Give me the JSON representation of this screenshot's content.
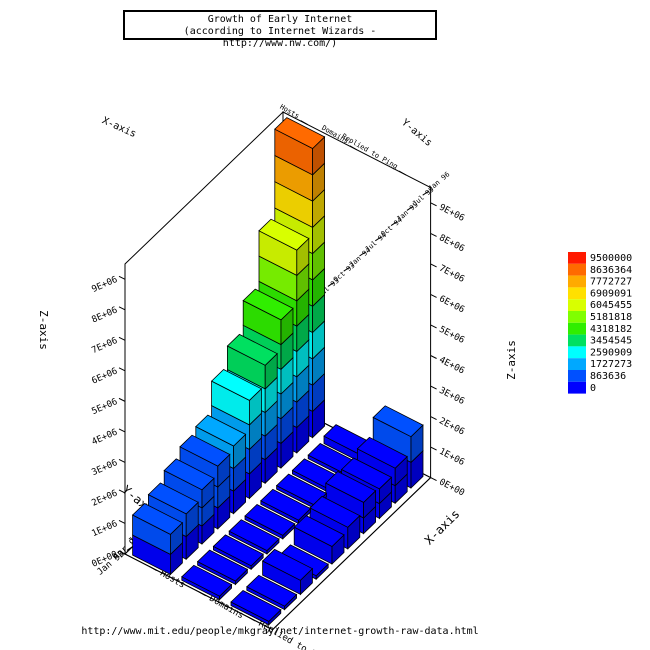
{
  "title": "Growth of Early Internet",
  "subtitle": "(according to Internet Wizards - http://www.nw.com/)",
  "footer_url": "http://www.mit.edu/people/mkgray/net/internet-growth-raw-data.html",
  "chart_data": {
    "type": "bar3d",
    "title": "Growth of Early Internet",
    "subtitle": "(according to Internet Wizards - http://www.nw.com/)",
    "x_axis_label": "X-axis",
    "y_axis_label": "Y-axis",
    "z_axis_label": "Z-axis",
    "x_categories": [
      "Hosts",
      "Domains",
      "Replied to Ping"
    ],
    "y_categories": [
      "Jan 93",
      "Apr 93",
      "Jul 93",
      "Oct 93",
      "Jan 94",
      "Jul 94",
      "Oct 94",
      "Jan 95",
      "Jul 95",
      "Jan 96"
    ],
    "series": [
      {
        "name": "Hosts",
        "values": [
          1313000,
          1486000,
          1776000,
          2056000,
          2217000,
          3212000,
          3864000,
          4852000,
          6642000,
          9472000
        ]
      },
      {
        "name": "Domains",
        "values": [
          21000,
          22000,
          26000,
          28000,
          30000,
          46000,
          56000,
          71000,
          120000,
          240000
        ]
      },
      {
        "name": "Replied to Ping",
        "values": [
          0,
          0,
          464000,
          0,
          576000,
          707000,
          1024000,
          970000,
          1149000,
          1682000
        ]
      }
    ],
    "z_ticks": [
      "0E+00",
      "1E+06",
      "2E+06",
      "3E+06",
      "4E+06",
      "5E+06",
      "6E+06",
      "7E+06",
      "8E+06",
      "9E+06"
    ],
    "z_range": [
      0,
      9500000
    ],
    "legend": {
      "position": "right",
      "labels": [
        "9500000",
        "8636364",
        "7772727",
        "6909091",
        "6045455",
        "5181818",
        "4318182",
        "3454545",
        "2590909",
        "1727273",
        "863636",
        "0"
      ],
      "colors": [
        "#ff1a00",
        "#ff6a00",
        "#ffaa00",
        "#ffe000",
        "#d8ff00",
        "#80ff00",
        "#30ee00",
        "#00e060",
        "#00ffff",
        "#00a8ff",
        "#0050ff",
        "#0000ff"
      ]
    }
  }
}
